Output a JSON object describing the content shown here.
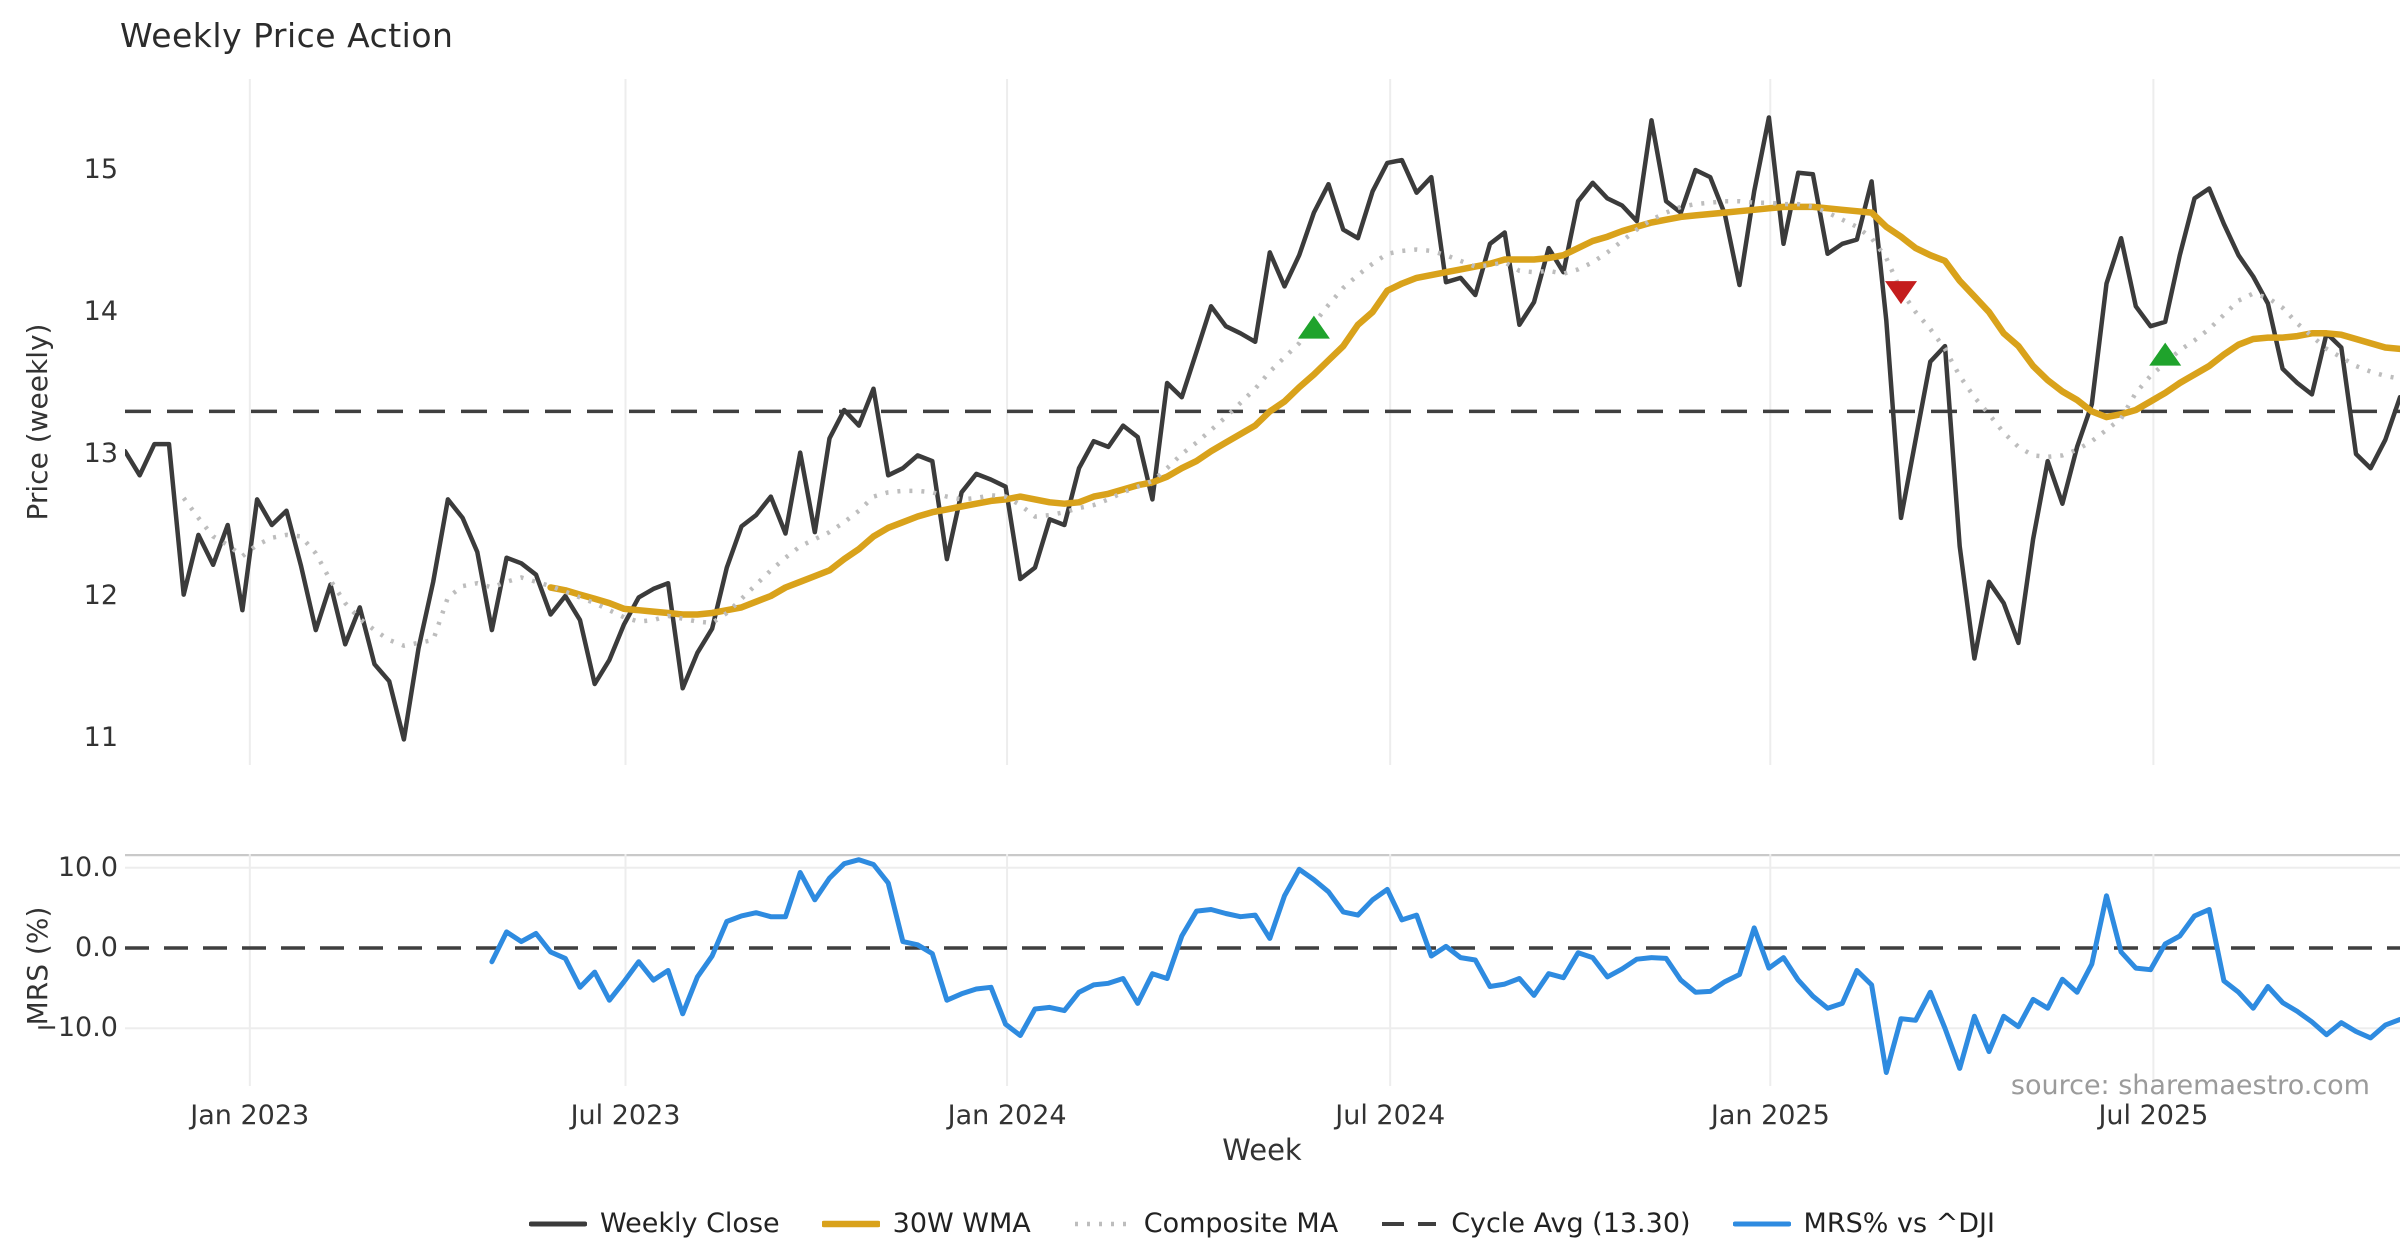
{
  "header": {
    "title": "Weekly Price Action"
  },
  "source_note": "source: sharemaestro.com",
  "chart_data": {
    "type": "line",
    "title": "Weekly Price Action",
    "xlabel": "Week",
    "ylabel_top": "Price (weekly)",
    "ylabel_bottom": "MRS (%)",
    "grid": "vertical-on-both-panels",
    "legend_position": "bottom-center",
    "top_panel": {
      "y_ticks": [
        {
          "v": 15,
          "label": "15"
        },
        {
          "v": 14,
          "label": "14"
        },
        {
          "v": 13,
          "label": "13"
        },
        {
          "v": 12,
          "label": "12"
        },
        {
          "v": 11,
          "label": "11"
        }
      ],
      "y_range": [
        10.81,
        15.64
      ],
      "cycle_avg_value": 13.3
    },
    "bottom_panel": {
      "y_ticks": [
        {
          "v": 10,
          "label": "10.0"
        },
        {
          "v": 0,
          "label": "0.0"
        },
        {
          "v": -10,
          "label": "−10.0"
        }
      ],
      "y_range": [
        -17.2,
        11.7
      ],
      "zero_line": 0.0
    },
    "x_ticks": [
      {
        "week": 8.5,
        "label": "Jan 2023"
      },
      {
        "week": 34.1,
        "label": "Jul 2023"
      },
      {
        "week": 60.1,
        "label": "Jan 2024"
      },
      {
        "week": 86.2,
        "label": "Jul 2024"
      },
      {
        "week": 112.1,
        "label": "Jan 2025"
      },
      {
        "week": 138.2,
        "label": "Jul 2025"
      }
    ],
    "weeks_total": 156,
    "series": [
      {
        "name": "Weekly Close",
        "color": "#3b3b3b",
        "width": 4.5,
        "dash": "",
        "panel": "top",
        "start_week": 0,
        "values": [
          13.02,
          12.85,
          13.07,
          13.07,
          12.01,
          12.43,
          12.22,
          12.5,
          11.9,
          12.68,
          12.5,
          12.6,
          12.21,
          11.76,
          12.08,
          11.66,
          11.92,
          11.52,
          11.4,
          10.99,
          11.63,
          12.1,
          12.68,
          12.55,
          12.31,
          11.76,
          12.27,
          12.23,
          12.15,
          11.87,
          12.0,
          11.83,
          11.38,
          11.55,
          11.8,
          11.99,
          12.05,
          12.09,
          11.35,
          11.6,
          11.77,
          12.2,
          12.49,
          12.57,
          12.7,
          12.44,
          13.01,
          12.45,
          13.11,
          13.31,
          13.2,
          13.46,
          12.85,
          12.9,
          12.99,
          12.95,
          12.26,
          12.73,
          12.86,
          12.82,
          12.77,
          12.12,
          12.2,
          12.54,
          12.5,
          12.9,
          13.09,
          13.05,
          13.2,
          13.12,
          12.68,
          13.5,
          13.4,
          13.72,
          14.04,
          13.9,
          13.85,
          13.79,
          14.42,
          14.18,
          14.4,
          14.7,
          14.9,
          14.58,
          14.52,
          14.85,
          15.05,
          15.07,
          14.84,
          14.95,
          14.21,
          14.24,
          14.12,
          14.48,
          14.56,
          13.91,
          14.07,
          14.45,
          14.28,
          14.78,
          14.91,
          14.8,
          14.75,
          14.64,
          15.35,
          14.78,
          14.7,
          15.0,
          14.95,
          14.69,
          14.19,
          14.85,
          15.37,
          14.48,
          14.98,
          14.97,
          14.41,
          14.48,
          14.51,
          14.92,
          13.94,
          12.55,
          13.1,
          13.65,
          13.76,
          12.35,
          11.56,
          12.1,
          11.95,
          11.67,
          12.4,
          12.95,
          12.65,
          13.05,
          13.35,
          14.2,
          14.52,
          14.04,
          13.9,
          13.93,
          14.4,
          14.8,
          14.87,
          14.62,
          14.4,
          14.25,
          14.06,
          13.6,
          13.5,
          13.42,
          13.85,
          13.75,
          13.0,
          12.9,
          13.1,
          13.4
        ]
      },
      {
        "name": "30W WMA",
        "color": "#d9a21b",
        "width": 6.5,
        "dash": "",
        "panel": "top",
        "start_week": 29,
        "values": [
          12.06,
          12.04,
          12.01,
          11.98,
          11.95,
          11.91,
          11.9,
          11.89,
          11.88,
          11.87,
          11.87,
          11.88,
          11.9,
          11.92,
          11.96,
          12.0,
          12.06,
          12.1,
          12.14,
          12.18,
          12.26,
          12.33,
          12.42,
          12.48,
          12.52,
          12.56,
          12.59,
          12.61,
          12.63,
          12.65,
          12.67,
          12.68,
          12.7,
          12.68,
          12.66,
          12.65,
          12.66,
          12.7,
          12.72,
          12.75,
          12.78,
          12.8,
          12.84,
          12.9,
          12.95,
          13.02,
          13.08,
          13.14,
          13.2,
          13.3,
          13.37,
          13.47,
          13.56,
          13.66,
          13.76,
          13.91,
          14.0,
          14.15,
          14.2,
          14.24,
          14.26,
          14.28,
          14.3,
          14.32,
          14.34,
          14.37,
          14.37,
          14.37,
          14.38,
          14.4,
          14.45,
          14.5,
          14.53,
          14.57,
          14.6,
          14.63,
          14.65,
          14.67,
          14.68,
          14.69,
          14.7,
          14.71,
          14.72,
          14.73,
          14.74,
          14.74,
          14.74,
          14.73,
          14.72,
          14.71,
          14.7,
          14.6,
          14.53,
          14.45,
          14.4,
          14.36,
          14.22,
          14.11,
          14.0,
          13.85,
          13.76,
          13.62,
          13.52,
          13.44,
          13.38,
          13.3,
          13.26,
          13.28,
          13.31,
          13.37,
          13.43,
          13.5,
          13.56,
          13.62,
          13.7,
          13.77,
          13.81,
          13.82,
          13.82,
          13.83,
          13.85,
          13.85,
          13.84,
          13.81,
          13.78,
          13.75,
          13.74
        ]
      },
      {
        "name": "Composite MA",
        "color": "#bdbdbd",
        "width": 4.5,
        "dash": "3 9",
        "panel": "top",
        "start_week": 4,
        "values": [
          12.69,
          12.55,
          12.42,
          12.36,
          12.28,
          12.36,
          12.41,
          12.43,
          12.42,
          12.3,
          12.11,
          11.95,
          11.84,
          11.76,
          11.69,
          11.65,
          11.67,
          11.69,
          11.99,
          12.07,
          12.09,
          12.06,
          12.1,
          12.13,
          12.1,
          12.07,
          12.03,
          11.99,
          11.95,
          11.9,
          11.85,
          11.82,
          11.83,
          11.86,
          11.84,
          11.82,
          11.81,
          11.88,
          11.98,
          12.08,
          12.18,
          12.27,
          12.35,
          12.4,
          12.45,
          12.52,
          12.6,
          12.7,
          12.73,
          12.74,
          12.74,
          12.73,
          12.7,
          12.68,
          12.69,
          12.71,
          12.7,
          12.64,
          12.56,
          12.57,
          12.59,
          12.62,
          12.64,
          12.68,
          12.73,
          12.77,
          12.81,
          12.9,
          13.0,
          13.08,
          13.17,
          13.26,
          13.36,
          13.46,
          13.58,
          13.68,
          13.78,
          13.92,
          14.05,
          14.17,
          14.26,
          14.34,
          14.41,
          14.43,
          14.44,
          14.43,
          14.4,
          14.36,
          14.32,
          14.33,
          14.35,
          14.29,
          14.28,
          14.29,
          14.27,
          14.3,
          14.35,
          14.42,
          14.5,
          14.58,
          14.65,
          14.7,
          14.74,
          14.76,
          14.77,
          14.78,
          14.78,
          14.77,
          14.77,
          14.76,
          14.76,
          14.74,
          14.7,
          14.65,
          14.6,
          14.52,
          14.38,
          14.15,
          14.0,
          13.88,
          13.74,
          13.55,
          13.4,
          13.28,
          13.15,
          13.05,
          12.99,
          12.98,
          12.99,
          13.03,
          13.09,
          13.17,
          13.25,
          13.43,
          13.55,
          13.64,
          13.73,
          13.8,
          13.88,
          13.98,
          14.08,
          14.13,
          14.1,
          14.03,
          13.92,
          13.83,
          13.74,
          13.68,
          13.62,
          13.58,
          13.55,
          13.53
        ]
      },
      {
        "name": "MRS% vs ^DJI",
        "color": "#2e8be0",
        "width": 5,
        "dash": "",
        "panel": "bottom",
        "start_week": 25,
        "values": [
          -1.7,
          2.0,
          0.8,
          1.8,
          -0.5,
          -1.3,
          -4.9,
          -3.0,
          -6.5,
          -4.2,
          -1.7,
          -4.0,
          -2.8,
          -8.2,
          -3.6,
          -1.0,
          3.3,
          4.0,
          4.4,
          3.9,
          3.9,
          9.4,
          6.0,
          8.7,
          10.5,
          11.0,
          10.4,
          8.1,
          0.8,
          0.4,
          -0.7,
          -6.5,
          -5.7,
          -5.1,
          -4.9,
          -9.5,
          -10.9,
          -7.6,
          -7.4,
          -7.8,
          -5.5,
          -4.6,
          -4.4,
          -3.8,
          -6.9,
          -3.2,
          -3.8,
          1.5,
          4.6,
          4.8,
          4.3,
          3.9,
          4.1,
          1.2,
          6.5,
          9.8,
          8.5,
          7.0,
          4.5,
          4.1,
          6.0,
          7.3,
          3.5,
          4.1,
          -1.0,
          0.2,
          -1.2,
          -1.5,
          -4.8,
          -4.5,
          -3.8,
          -5.9,
          -3.2,
          -3.7,
          -0.6,
          -1.2,
          -3.6,
          -2.6,
          -1.4,
          -1.2,
          -1.3,
          -4.0,
          -5.5,
          -5.4,
          -4.2,
          -3.3,
          2.5,
          -2.5,
          -1.2,
          -4.0,
          -6.0,
          -7.5,
          -6.9,
          -2.8,
          -4.6,
          -15.5,
          -8.8,
          -9.0,
          -5.5,
          -10.0,
          -15.0,
          -8.5,
          -12.9,
          -8.5,
          -9.8,
          -6.4,
          -7.5,
          -3.9,
          -5.5,
          -2.0,
          6.5,
          -0.5,
          -2.5,
          -2.7,
          0.5,
          1.5,
          4.0,
          4.8,
          -4.1,
          -5.5,
          -7.5,
          -4.8,
          -6.8,
          -7.9,
          -9.2,
          -10.8,
          -9.3,
          -10.4,
          -11.2,
          -9.6,
          -8.9
        ]
      }
    ],
    "cycle_avg_line": {
      "label": "Cycle Avg (13.30)",
      "value": 13.3,
      "color": "#3f3f3f",
      "dash": "26 16",
      "width": 3.5
    },
    "markers": [
      {
        "week": 81,
        "price": 13.89,
        "dir": "up",
        "color": "#1fa32c"
      },
      {
        "week": 121,
        "price": 14.14,
        "dir": "down",
        "color": "#c41d1d"
      },
      {
        "week": 139,
        "price": 13.7,
        "dir": "up",
        "color": "#1fa32c"
      }
    ],
    "legend": [
      {
        "label": "Weekly Close",
        "color": "#3b3b3b",
        "dash": "",
        "width": 5
      },
      {
        "label": "30W WMA",
        "color": "#d9a21b",
        "dash": "",
        "width": 6.5
      },
      {
        "label": "Composite MA",
        "color": "#bdbdbd",
        "dash": "3 9",
        "width": 4.5
      },
      {
        "label": "Cycle Avg (13.30)",
        "color": "#3f3f3f",
        "dash": "22 14",
        "width": 4
      },
      {
        "label": "MRS% vs ^DJI",
        "color": "#2e8be0",
        "dash": "",
        "width": 5
      }
    ],
    "colors": {
      "grid": "#ededed",
      "panel_spine": "#c9c9c9",
      "title_text": "#2b2b2b",
      "tick_text": "#333333",
      "source_text": "#9b9b9b"
    }
  }
}
